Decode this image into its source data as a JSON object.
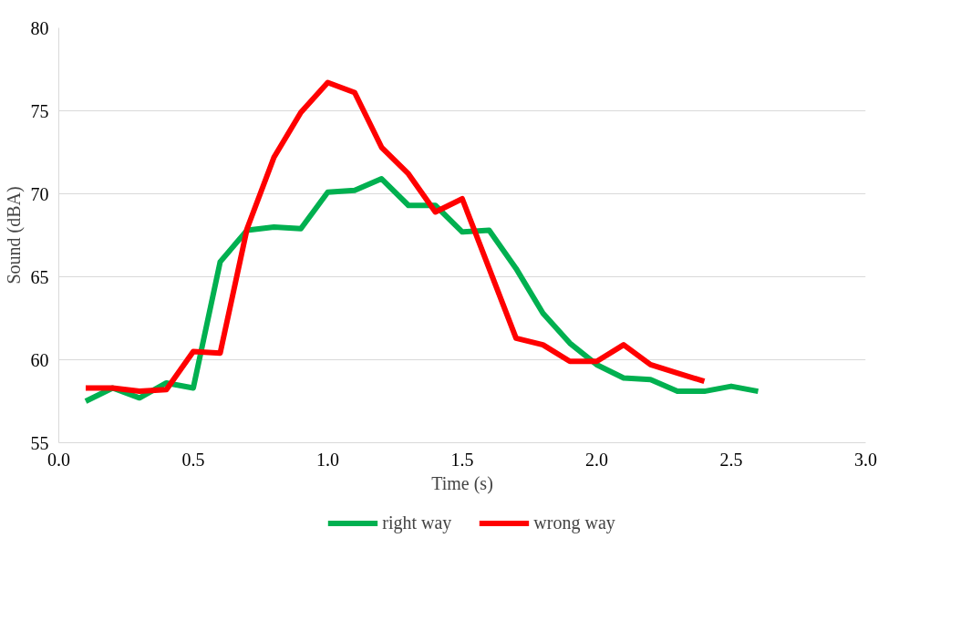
{
  "chart_data": {
    "type": "line",
    "xlabel": "Time (s)",
    "ylabel": "Sound (dBA)",
    "x": [
      0.1,
      0.2,
      0.3,
      0.4,
      0.5,
      0.6,
      0.7,
      0.8,
      0.9,
      1.0,
      1.1,
      1.2,
      1.3,
      1.4,
      1.5,
      1.6,
      1.7,
      1.8,
      1.9,
      2.0,
      2.1,
      2.2,
      2.3,
      2.4,
      2.5,
      2.6
    ],
    "series": [
      {
        "name": "right way",
        "color": "#00b050",
        "values": [
          57.5,
          58.3,
          57.7,
          58.6,
          58.3,
          65.9,
          67.8,
          68.0,
          67.9,
          70.1,
          70.2,
          70.9,
          69.3,
          69.3,
          67.7,
          67.8,
          65.5,
          62.8,
          61.0,
          59.7,
          58.9,
          58.8,
          58.1,
          58.1,
          58.4,
          58.1
        ]
      },
      {
        "name": "wrong way",
        "color": "#ff0000",
        "values": [
          58.3,
          58.3,
          58.1,
          58.2,
          60.5,
          60.4,
          67.9,
          72.2,
          74.9,
          76.7,
          76.1,
          72.8,
          71.2,
          68.9,
          69.7,
          65.5,
          61.3,
          60.9,
          59.9,
          59.9,
          60.9,
          59.7,
          59.2,
          58.7,
          null,
          null
        ]
      }
    ],
    "xlim": [
      0,
      3
    ],
    "xticks": [
      {
        "value": 0,
        "label": "0.0"
      },
      {
        "value": 0.5,
        "label": "0.5"
      },
      {
        "value": 1,
        "label": "1.0"
      },
      {
        "value": 1.5,
        "label": "1.5"
      },
      {
        "value": 2,
        "label": "2.0"
      },
      {
        "value": 2.5,
        "label": "2.5"
      },
      {
        "value": 3,
        "label": "3.0"
      }
    ],
    "ylim": [
      55,
      80
    ],
    "yticks": [
      55,
      60,
      65,
      70,
      75,
      80
    ],
    "grid": "y",
    "legend": "bottom",
    "line_style": "solid",
    "marker": "none"
  }
}
